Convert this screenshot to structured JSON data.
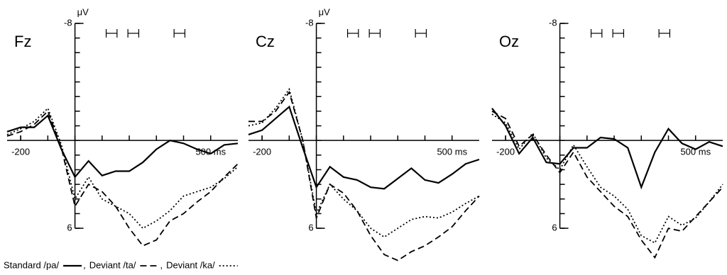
{
  "chart_data": [
    {
      "type": "line",
      "title": "Fz",
      "y_label": "μV",
      "x": [
        -250,
        -200,
        -150,
        -100,
        -50,
        0,
        50,
        100,
        150,
        200,
        250,
        300,
        350,
        400,
        450,
        500,
        550,
        600
      ],
      "xlim": [
        -250,
        600
      ],
      "xticks": [
        -200,
        {
          "value": 500,
          "label": "500 ms"
        }
      ],
      "ylim": [
        -8,
        9
      ],
      "yticks": [
        -8,
        6
      ],
      "inverted": true,
      "intervals": [
        [
          115,
          155
        ],
        [
          195,
          235
        ],
        [
          365,
          405
        ]
      ],
      "series": [
        {
          "name": "Standard /pa/",
          "color": "#000000",
          "dash": "solid",
          "values": [
            -0.6,
            -0.9,
            -0.9,
            -1.7,
            0.6,
            2.5,
            1.4,
            2.4,
            2.1,
            2.1,
            1.5,
            0.6,
            0,
            0.2,
            0.6,
            0.9,
            0.3,
            0.2
          ]
        },
        {
          "name": "Deviant /ta/",
          "color": "#000000",
          "dash": "dashed",
          "values": [
            -0.3,
            -0.6,
            -1.1,
            -2.0,
            0.5,
            4.5,
            3.0,
            3.5,
            4.5,
            6.0,
            7.2,
            6.8,
            5.5,
            5.0,
            4.2,
            3.5,
            2.5,
            1.6
          ]
        },
        {
          "name": "Deviant /ka/",
          "color": "#000000",
          "dash": "dotted",
          "values": [
            -0.4,
            -0.8,
            -1.3,
            -2.2,
            0.3,
            4.0,
            2.5,
            4.0,
            4.5,
            5.0,
            6.0,
            5.5,
            4.8,
            3.8,
            3.5,
            3.2,
            2.6,
            1.8
          ]
        }
      ]
    },
    {
      "type": "line",
      "title": "Cz",
      "y_label": "μV",
      "x": [
        -250,
        -200,
        -150,
        -100,
        -50,
        0,
        50,
        100,
        150,
        200,
        250,
        300,
        350,
        400,
        450,
        500,
        550,
        600
      ],
      "xlim": [
        -250,
        600
      ],
      "xticks": [
        -200,
        {
          "value": 500,
          "label": "500 ms"
        }
      ],
      "ylim": [
        -8,
        9
      ],
      "yticks": [
        -8,
        6
      ],
      "inverted": true,
      "intervals": [
        [
          115,
          155
        ],
        [
          195,
          235
        ],
        [
          365,
          405
        ]
      ],
      "series": [
        {
          "name": "Standard /pa/",
          "color": "#000000",
          "dash": "solid",
          "values": [
            -0.4,
            -0.7,
            -1.5,
            -2.3,
            0.5,
            3.2,
            1.8,
            2.5,
            2.7,
            3.2,
            3.3,
            2.6,
            1.9,
            2.7,
            2.9,
            2.3,
            1.6,
            1.3
          ]
        },
        {
          "name": "Deviant /ta/",
          "color": "#000000",
          "dash": "dashed",
          "values": [
            -1.3,
            -1.3,
            -2.0,
            -3.3,
            0,
            5.3,
            3.0,
            3.6,
            4.8,
            6.5,
            7.8,
            8.2,
            7.6,
            7.2,
            6.6,
            5.9,
            4.8,
            3.8
          ]
        },
        {
          "name": "Deviant /ka/",
          "color": "#000000",
          "dash": "dotted",
          "values": [
            -1.0,
            -1.2,
            -2.2,
            -3.5,
            0,
            5.0,
            3.0,
            4.0,
            4.8,
            6.0,
            6.6,
            6.0,
            5.4,
            5.2,
            5.3,
            4.9,
            4.3,
            3.8
          ]
        }
      ]
    },
    {
      "type": "line",
      "title": "Oz",
      "y_label": "",
      "x": [
        -250,
        -200,
        -150,
        -100,
        -50,
        0,
        50,
        100,
        150,
        200,
        250,
        300,
        350,
        400,
        450,
        500,
        550,
        600
      ],
      "xlim": [
        -250,
        600
      ],
      "xticks": [
        -200,
        {
          "value": 500,
          "label": "500 ms"
        }
      ],
      "ylim": [
        -8,
        9
      ],
      "yticks": [
        -8,
        6
      ],
      "inverted": true,
      "intervals": [
        [
          115,
          155
        ],
        [
          195,
          235
        ],
        [
          365,
          405
        ]
      ],
      "series": [
        {
          "name": "Standard /pa/",
          "color": "#000000",
          "dash": "solid",
          "values": [
            -2.2,
            -1.0,
            0.9,
            -0.2,
            1.5,
            1.6,
            0.5,
            0.5,
            -0.2,
            -0.1,
            0.5,
            3.2,
            0.8,
            -0.8,
            0.2,
            0.6,
            0.1,
            0.4
          ]
        },
        {
          "name": "Deviant /ta/",
          "color": "#000000",
          "dash": "dashed",
          "values": [
            -2.0,
            -1.5,
            0.4,
            -0.4,
            1.0,
            2.2,
            0.8,
            2.5,
            3.5,
            4.5,
            5.2,
            6.8,
            8.0,
            6.0,
            6.2,
            5.2,
            4.2,
            3.2
          ]
        },
        {
          "name": "Deviant /ka/",
          "color": "#000000",
          "dash": "dotted",
          "values": [
            -1.8,
            -1.2,
            0.6,
            -0.5,
            1.2,
            2.0,
            0.3,
            1.8,
            3.2,
            3.8,
            4.7,
            6.5,
            7.0,
            5.2,
            5.8,
            5.3,
            4.2,
            3.0
          ]
        }
      ]
    }
  ],
  "legend_separator": ","
}
